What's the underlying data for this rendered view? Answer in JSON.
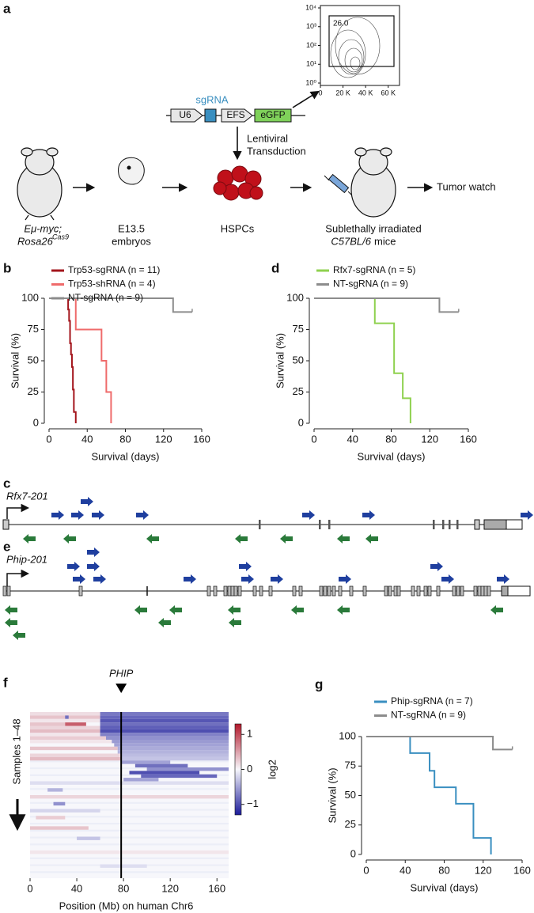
{
  "panel_labels": [
    "a",
    "b",
    "c",
    "d",
    "e",
    "f",
    "g"
  ],
  "schematic": {
    "sgrna": "sgRNA",
    "u6": "U6",
    "efs": "EFS",
    "egfp": "eGFP",
    "transduction": [
      "Lentiviral",
      "Transduction"
    ],
    "donor": [
      "Eμ-myc;",
      "Rosa26",
      "Cas9"
    ],
    "embryos": [
      "E13.5",
      "embryos"
    ],
    "cells": "HSPCs",
    "recipient": [
      "Sublethally irradiated",
      "C57BL/6",
      "mice"
    ],
    "outcome": "Tumor watch"
  },
  "gene_maps": {
    "c": "Rfx7-201",
    "e": "Phip-201"
  },
  "chart_data": [
    {
      "type": "contour",
      "log_y": true,
      "xlim": [
        0,
        70000
      ],
      "ylim": [
        1,
        10000
      ],
      "xticks": [
        0,
        {
          "value": 20000,
          "label": "20 K"
        },
        {
          "value": 40000,
          "label": "40 K"
        },
        {
          "value": 60000,
          "label": "60 K"
        }
      ],
      "yticks": [
        {
          "value": 1,
          "label": "10⁰"
        },
        {
          "value": 10,
          "label": "10¹"
        },
        {
          "value": 100,
          "label": "10²"
        },
        {
          "value": 1000,
          "label": "10³"
        },
        {
          "value": 10000,
          "label": "10⁴"
        }
      ],
      "gate_label": "26.0"
    },
    {
      "type": "survival",
      "xlim": [
        0,
        160
      ],
      "xticks": [
        0,
        40,
        80,
        120,
        160
      ],
      "ylim": [
        0,
        100
      ],
      "yticks": [
        0,
        25,
        50,
        75,
        100
      ],
      "xlabel": "Survival (days)",
      "ylabel": "Survival (%)",
      "series": [
        {
          "name": "Trp53-sgRNA (n = 11)",
          "color": "#a3151c",
          "x": [
            0,
            20,
            21,
            22,
            23,
            24,
            25,
            26,
            28
          ],
          "values": [
            100,
            91,
            82,
            64,
            55,
            45,
            27,
            9,
            0
          ]
        },
        {
          "name": "Trp53-shRNA (n = 4)",
          "color": "#ef6b6b",
          "x": [
            0,
            28,
            55,
            60,
            65
          ],
          "values": [
            100,
            75,
            50,
            25,
            0
          ]
        },
        {
          "name": "NT-sgRNA (n = 9)",
          "color": "#8c8c8c",
          "x": [
            0,
            130,
            150
          ],
          "values": [
            100,
            89,
            89
          ]
        }
      ]
    },
    {
      "type": "survival",
      "xlim": [
        0,
        160
      ],
      "xticks": [
        0,
        40,
        80,
        120,
        160
      ],
      "ylim": [
        0,
        100
      ],
      "yticks": [
        0,
        25,
        50,
        75,
        100
      ],
      "xlabel": "Survival (days)",
      "ylabel": "Survival (%)",
      "series": [
        {
          "name": "Rfx7-sgRNA (n = 5)",
          "color": "#8fd14f",
          "x": [
            0,
            63,
            83,
            92,
            100
          ],
          "values": [
            100,
            80,
            40,
            20,
            0
          ]
        },
        {
          "name": "NT-sgRNA (n = 9)",
          "color": "#8c8c8c",
          "x": [
            0,
            130,
            150
          ],
          "values": [
            100,
            89,
            89
          ]
        }
      ]
    },
    {
      "type": "heatmap",
      "xlim": [
        0,
        170
      ],
      "xticks": [
        0,
        40,
        80,
        120,
        160
      ],
      "rows": 48,
      "xlabel": "Position (Mb) on human Chr6",
      "ylabel": "Samples 1–48",
      "marker": {
        "x": 78,
        "label": "PHIP"
      },
      "clim": [
        -1.3,
        1.3
      ],
      "cticks": [
        1,
        0,
        {
          "value": -1,
          "label": "−1"
        }
      ],
      "colorbar_label": "log2",
      "segments": [
        {
          "row": 0,
          "start": 0,
          "end": 60,
          "value": 0.15
        },
        {
          "row": 0,
          "start": 60,
          "end": 170,
          "value": -0.75
        },
        {
          "row": 1,
          "start": 0,
          "end": 60,
          "value": 0.3
        },
        {
          "row": 1,
          "start": 60,
          "end": 170,
          "value": -0.85
        },
        {
          "row": 1,
          "start": 30,
          "end": 33,
          "value": -0.8
        },
        {
          "row": 2,
          "start": 0,
          "end": 60,
          "value": 0.1
        },
        {
          "row": 2,
          "start": 60,
          "end": 170,
          "value": -0.95
        },
        {
          "row": 3,
          "start": 0,
          "end": 30,
          "value": 0.3
        },
        {
          "row": 3,
          "start": 30,
          "end": 48,
          "value": 0.9
        },
        {
          "row": 3,
          "start": 60,
          "end": 170,
          "value": -0.8
        },
        {
          "row": 4,
          "start": 0,
          "end": 60,
          "value": 0.2
        },
        {
          "row": 4,
          "start": 60,
          "end": 170,
          "value": -0.9
        },
        {
          "row": 5,
          "start": 0,
          "end": 60,
          "value": 0.35
        },
        {
          "row": 5,
          "start": 60,
          "end": 170,
          "value": -1.0
        },
        {
          "row": 6,
          "start": 0,
          "end": 60,
          "value": 0.1
        },
        {
          "row": 6,
          "start": 60,
          "end": 170,
          "value": -0.7
        },
        {
          "row": 7,
          "start": 0,
          "end": 65,
          "value": 0.25
        },
        {
          "row": 7,
          "start": 65,
          "end": 170,
          "value": -0.6
        },
        {
          "row": 8,
          "start": 0,
          "end": 70,
          "value": 0.1
        },
        {
          "row": 8,
          "start": 70,
          "end": 170,
          "value": -0.55
        },
        {
          "row": 9,
          "start": 72,
          "end": 170,
          "value": -0.5
        },
        {
          "row": 10,
          "start": 0,
          "end": 75,
          "value": 0.3
        },
        {
          "row": 10,
          "start": 75,
          "end": 170,
          "value": -0.45
        },
        {
          "row": 11,
          "start": 75,
          "end": 170,
          "value": -0.4
        },
        {
          "row": 12,
          "start": 0,
          "end": 78,
          "value": 0.2
        },
        {
          "row": 12,
          "start": 78,
          "end": 170,
          "value": -0.35
        },
        {
          "row": 13,
          "start": 0,
          "end": 78,
          "value": 0.35
        },
        {
          "row": 13,
          "start": 78,
          "end": 170,
          "value": -0.3
        },
        {
          "row": 14,
          "start": 78,
          "end": 120,
          "value": -0.5
        },
        {
          "row": 15,
          "start": 90,
          "end": 135,
          "value": -0.8
        },
        {
          "row": 16,
          "start": 100,
          "end": 170,
          "value": -0.6
        },
        {
          "row": 17,
          "start": 85,
          "end": 145,
          "value": -1.0
        },
        {
          "row": 18,
          "start": 95,
          "end": 160,
          "value": -0.85
        },
        {
          "row": 19,
          "start": 80,
          "end": 110,
          "value": -0.5
        },
        {
          "row": 20,
          "start": 0,
          "end": 170,
          "value": -0.15
        },
        {
          "row": 22,
          "start": 15,
          "end": 28,
          "value": -0.4
        },
        {
          "row": 24,
          "start": 0,
          "end": 170,
          "value": 0.2
        },
        {
          "row": 26,
          "start": 20,
          "end": 30,
          "value": -0.6
        },
        {
          "row": 28,
          "start": 0,
          "end": 60,
          "value": -0.2
        },
        {
          "row": 30,
          "start": 5,
          "end": 30,
          "value": 0.25
        },
        {
          "row": 33,
          "start": 0,
          "end": 50,
          "value": 0.3
        },
        {
          "row": 36,
          "start": 40,
          "end": 60,
          "value": -0.3
        },
        {
          "row": 40,
          "start": 0,
          "end": 170,
          "value": 0.1
        },
        {
          "row": 44,
          "start": 60,
          "end": 100,
          "value": -0.15
        }
      ]
    },
    {
      "type": "survival",
      "xlim": [
        0,
        160
      ],
      "xticks": [
        0,
        40,
        80,
        120,
        160
      ],
      "ylim": [
        0,
        100
      ],
      "yticks": [
        0,
        25,
        50,
        75,
        100
      ],
      "xlabel": "Survival (days)",
      "ylabel": "Survival (%)",
      "series": [
        {
          "name": "Phip-sgRNA (n = 7)",
          "color": "#3a8fc0",
          "x": [
            0,
            45,
            65,
            70,
            92,
            110,
            128
          ],
          "values": [
            100,
            86,
            71,
            57,
            43,
            14,
            0
          ]
        },
        {
          "name": "NT-sgRNA (n = 9)",
          "color": "#8c8c8c",
          "x": [
            0,
            130,
            150
          ],
          "values": [
            100,
            89,
            89
          ]
        }
      ]
    }
  ]
}
